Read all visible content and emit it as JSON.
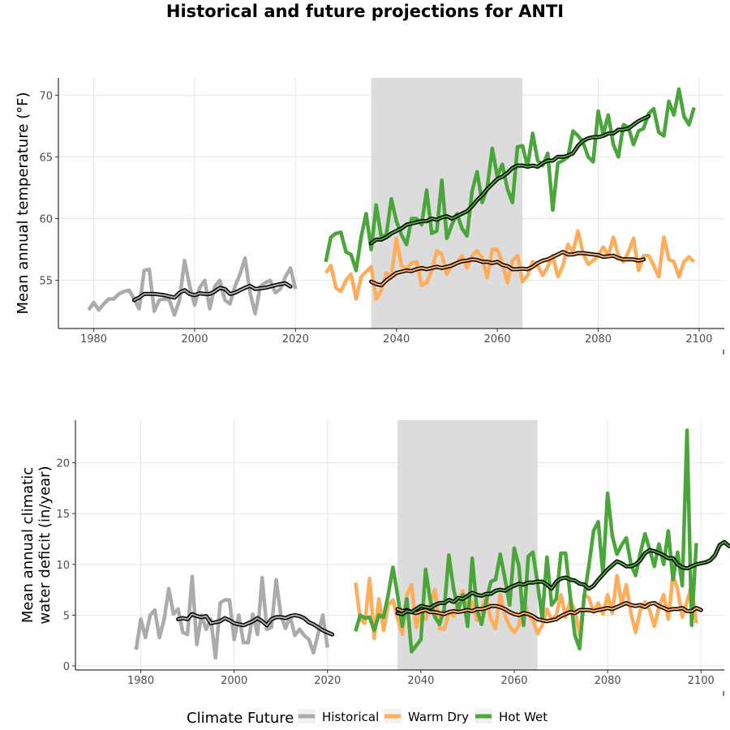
{
  "title": "Historical and future projections for ANTI",
  "colors": {
    "historical": "#ababab",
    "warm_dry": "#ffac5b",
    "hot_wet": "#4aa53b",
    "smooth": "#000000",
    "shade": "#dcdcdc",
    "grid": "#e5e5e5"
  },
  "legend": {
    "title": "Climate Future",
    "items": [
      {
        "label": "Historical",
        "color": "#ababab"
      },
      {
        "label": "Warm Dry",
        "color": "#ffac5b"
      },
      {
        "label": "Hot Wet",
        "color": "#4aa53b"
      }
    ]
  },
  "chart_data": [
    {
      "type": "line",
      "ylabel": "Mean annual temperature (°F)",
      "xlim": [
        1973,
        2105
      ],
      "ylim": [
        51.1,
        71.4
      ],
      "xticks": [
        1980,
        2000,
        2020,
        2040,
        2060,
        2080,
        2100
      ],
      "yticks": [
        55,
        60,
        65,
        70
      ],
      "shade": [
        2035,
        2065
      ],
      "grid": true,
      "series": [
        {
          "name": "Historical",
          "key": "historical",
          "x_start": 1979,
          "values": [
            52.6,
            53.2,
            52.6,
            53.1,
            53.5,
            53.5,
            53.9,
            54.1,
            54.2,
            53.5,
            52.7,
            55.8,
            55.9,
            52.5,
            53.4,
            53.5,
            53.4,
            52.2,
            53.4,
            56.6,
            54.6,
            53.0,
            54.4,
            55.0,
            52.7,
            54.5,
            55.0,
            53.4,
            53.1,
            54.5,
            55.5,
            56.8,
            54.0,
            52.3,
            54.5,
            54.8,
            55.0,
            54.0,
            54.3,
            55.3,
            56.0,
            54.3
          ]
        },
        {
          "name": "Historical smooth",
          "key": "smooth_hist",
          "x_start": 1988,
          "values": [
            53.4,
            53.6,
            53.9,
            53.9,
            53.9,
            53.85,
            53.8,
            53.7,
            53.6,
            54.0,
            54.2,
            53.9,
            53.8,
            53.95,
            53.9,
            53.9,
            54.1,
            54.4,
            54.3,
            53.9,
            54.0,
            54.2,
            54.4,
            54.55,
            54.3,
            54.35,
            54.4,
            54.5,
            54.6,
            54.7,
            54.75,
            54.5
          ]
        },
        {
          "name": "Warm Dry",
          "key": "warm_dry",
          "x_start": 2026,
          "values": [
            55.6,
            56.2,
            54.4,
            54.1,
            55.0,
            55.5,
            53.5,
            55.3,
            55.7,
            56.1,
            53.5,
            54.2,
            55.6,
            55.3,
            58.4,
            56.2,
            55.9,
            56.4,
            56.5,
            54.6,
            54.8,
            55.8,
            57.4,
            57.1,
            55.5,
            56.3,
            56.4,
            57.0,
            56.0,
            57.0,
            57.4,
            56.8,
            55.2,
            57.5,
            57.5,
            56.4,
            54.8,
            56.6,
            57.0,
            54.9,
            55.4,
            56.5,
            56.2,
            55.4,
            56.1,
            57.0,
            55.3,
            56.2,
            57.9,
            57.3,
            59.0,
            57.2,
            56.3,
            56.6,
            57.0,
            57.7,
            57.0,
            58.5,
            57.0,
            56.5,
            57.3,
            58.4,
            55.8,
            57.0,
            57.0,
            56.2,
            55.3,
            58.5,
            56.7,
            56.5,
            55.3,
            56.5,
            56.9,
            56.5
          ]
        },
        {
          "name": "Warm Dry smooth",
          "key": "smooth_wd",
          "x_start": 2035,
          "values": [
            54.9,
            54.7,
            54.6,
            55.0,
            55.3,
            55.6,
            55.7,
            55.8,
            55.75,
            55.9,
            56.0,
            55.9,
            56.0,
            56.1,
            56.0,
            56.1,
            56.2,
            56.4,
            56.55,
            56.6,
            56.7,
            56.65,
            56.5,
            56.5,
            56.4,
            56.5,
            56.25,
            56.15,
            55.9,
            55.9,
            55.95,
            55.9,
            56.1,
            56.4,
            56.6,
            56.7,
            56.9,
            57.1,
            57.3,
            57.1,
            57.1,
            57.2,
            57.2,
            57.15,
            57.1,
            57.05,
            56.9,
            56.95,
            57.0,
            56.8,
            56.7,
            56.7,
            56.7,
            56.6,
            56.7
          ]
        },
        {
          "name": "Hot Wet",
          "key": "hot_wet",
          "x_start": 2026,
          "values": [
            56.5,
            58.5,
            58.8,
            58.9,
            57.3,
            57.1,
            55.8,
            58.5,
            60.4,
            57.5,
            61.1,
            58.5,
            58.7,
            61.6,
            59.8,
            58.7,
            57.9,
            60.0,
            60.0,
            59.5,
            62.3,
            58.8,
            59.0,
            63.1,
            58.4,
            59.5,
            60.4,
            59.2,
            58.6,
            62.2,
            63.8,
            61.3,
            62.5,
            65.7,
            63.4,
            64.4,
            62.4,
            61.3,
            65.8,
            65.9,
            64.2,
            66.9,
            64.7,
            64.3,
            65.3,
            60.7,
            64.5,
            64.7,
            65.0,
            67.1,
            66.7,
            66.2,
            65.0,
            64.6,
            68.7,
            66.8,
            68.4,
            66.0,
            65.0,
            67.6,
            67.4,
            66.0,
            67.1,
            67.3,
            68.5,
            68.9,
            67.0,
            66.7,
            69.5,
            68.4,
            70.5,
            68.3,
            67.6,
            69.0
          ]
        },
        {
          "name": "Hot Wet smooth",
          "key": "smooth_hw",
          "x_start": 2035,
          "values": [
            58.0,
            58.3,
            58.3,
            58.5,
            58.8,
            59.0,
            59.2,
            59.5,
            59.6,
            59.7,
            59.8,
            59.8,
            60.0,
            59.9,
            60.1,
            60.2,
            60.0,
            60.2,
            60.4,
            60.6,
            61.0,
            61.5,
            61.9,
            62.4,
            62.8,
            63.2,
            63.4,
            63.7,
            64.1,
            64.3,
            64.3,
            64.2,
            64.3,
            64.2,
            64.5,
            64.7,
            64.7,
            65.0,
            65.0,
            65.1,
            65.3,
            65.9,
            66.3,
            66.5,
            66.6,
            66.6,
            66.7,
            66.9,
            66.9,
            67.2,
            67.2,
            67.3,
            67.6,
            67.9,
            68.1,
            68.3
          ]
        }
      ]
    },
    {
      "type": "line",
      "ylabel": [
        "Mean annual climatic",
        "water deficit (in/year)"
      ],
      "xlim": [
        1966,
        2105
      ],
      "ylim": [
        -0.4,
        24.2
      ],
      "xticks": [
        1980,
        2000,
        2020,
        2040,
        2060,
        2080,
        2100
      ],
      "yticks": [
        0,
        5,
        10,
        15,
        20
      ],
      "shade": [
        2035,
        2065
      ],
      "grid": true,
      "series": [
        {
          "name": "Historical",
          "key": "historical",
          "x_start": 1979,
          "values": [
            1.6,
            4.6,
            2.8,
            5.0,
            5.5,
            2.8,
            4.6,
            7.6,
            5.1,
            5.6,
            3.3,
            3.1,
            8.8,
            2.1,
            5.0,
            3.6,
            4.6,
            0.8,
            6.2,
            6.5,
            6.5,
            2.6,
            5.0,
            2.3,
            2.3,
            5.1,
            3.1,
            8.7,
            3.6,
            3.8,
            8.5,
            5.0,
            3.7,
            4.9,
            3.0,
            3.6,
            3.0,
            2.6,
            1.3,
            3.2,
            5.0,
            1.8
          ]
        },
        {
          "name": "Historical smooth",
          "key": "smooth_hist",
          "x_start": 1988,
          "values": [
            4.6,
            4.7,
            4.6,
            5.1,
            4.9,
            4.8,
            4.9,
            4.2,
            4.3,
            4.4,
            4.7,
            4.5,
            4.2,
            4.1,
            4.0,
            4.2,
            4.4,
            4.7,
            4.4,
            4.0,
            4.6,
            4.8,
            4.8,
            4.7,
            4.9,
            5.0,
            4.9,
            4.7,
            4.3,
            4.1,
            3.8,
            3.5,
            3.3,
            3.1
          ]
        },
        {
          "name": "Warm Dry",
          "key": "warm_dry",
          "x_start": 2026,
          "values": [
            8.2,
            4.6,
            4.2,
            8.6,
            2.7,
            6.6,
            3.5,
            6.0,
            6.5,
            4.7,
            3.1,
            7.0,
            8.0,
            3.8,
            5.3,
            4.6,
            6.2,
            7.5,
            3.7,
            3.6,
            5.3,
            4.9,
            6.1,
            7.4,
            5.3,
            6.3,
            4.5,
            5.6,
            6.9,
            4.6,
            3.7,
            7.0,
            5.0,
            3.9,
            3.3,
            4.0,
            6.6,
            5.0,
            4.5,
            3.2,
            4.0,
            5.6,
            4.5,
            5.0,
            7.0,
            4.8,
            6.4,
            5.5,
            3.0,
            7.0,
            6.7,
            5.3,
            6.2,
            5.1,
            7.0,
            5.2,
            8.9,
            6.0,
            8.0,
            5.2,
            3.3,
            5.5,
            6.3,
            5.5,
            3.9,
            5.8,
            7.0,
            4.6,
            9.0,
            7.5,
            4.8,
            6.3,
            8.0,
            4.2
          ]
        },
        {
          "name": "Warm Dry smooth",
          "key": "smooth_wd",
          "x_start": 2035,
          "values": [
            5.6,
            5.4,
            5.5,
            5.3,
            5.2,
            5.4,
            5.5,
            5.3,
            5.3,
            5.2,
            5.1,
            5.3,
            5.4,
            5.3,
            5.4,
            5.5,
            5.4,
            5.6,
            5.6,
            5.7,
            5.9,
            5.9,
            5.8,
            5.6,
            5.3,
            5.1,
            5.0,
            5.2,
            5.1,
            4.9,
            4.6,
            4.5,
            4.4,
            4.5,
            4.6,
            4.9,
            5.1,
            5.3,
            5.2,
            5.5,
            5.5,
            5.5,
            5.4,
            5.5,
            5.6,
            5.7,
            5.6,
            5.8,
            6.0,
            6.2,
            6.0,
            5.9,
            6.0,
            5.8,
            6.1,
            6.2,
            5.9,
            5.7,
            5.5,
            5.6,
            5.6,
            5.7,
            5.4,
            5.4,
            5.7,
            5.5
          ]
        },
        {
          "name": "Hot Wet",
          "key": "hot_wet",
          "x_start": 2026,
          "values": [
            3.4,
            5.0,
            4.7,
            4.8,
            3.5,
            5.0,
            4.8,
            7.0,
            9.7,
            7.0,
            3.9,
            6.6,
            1.4,
            2.0,
            2.6,
            9.5,
            6.5,
            4.8,
            4.1,
            5.6,
            10.9,
            7.6,
            5.5,
            7.0,
            3.9,
            10.6,
            5.5,
            4.1,
            6.4,
            8.3,
            8.5,
            11.0,
            8.6,
            6.0,
            11.6,
            9.8,
            4.0,
            10.8,
            11.2,
            8.1,
            4.7,
            10.7,
            6.0,
            6.6,
            11.1,
            11.1,
            6.8,
            3.0,
            1.7,
            6.9,
            9.9,
            13.3,
            14.2,
            9.0,
            17.0,
            12.8,
            11.0,
            11.9,
            12.6,
            10.0,
            8.9,
            11.1,
            13.0,
            11.5,
            9.8,
            12.0,
            10.0,
            13.3,
            8.5,
            11.2,
            7.9,
            23.2,
            4.0,
            12.1
          ]
        },
        {
          "name": "Hot Wet smooth",
          "key": "smooth_hw",
          "x_start": 2035,
          "values": [
            5.2,
            5.1,
            5.4,
            5.3,
            5.6,
            5.9,
            5.8,
            5.7,
            6.0,
            6.2,
            6.2,
            6.5,
            6.3,
            6.7,
            6.6,
            6.9,
            7.2,
            7.0,
            6.9,
            7.1,
            7.1,
            7.4,
            7.5,
            7.4,
            7.7,
            7.9,
            8.1,
            8.0,
            8.2,
            8.2,
            8.3,
            8.3,
            8.0,
            7.6,
            8.3,
            8.6,
            8.7,
            8.5,
            8.4,
            8.1,
            8.0,
            7.6,
            7.9,
            8.5,
            9.0,
            9.5,
            9.9,
            10.3,
            10.1,
            9.8,
            9.8,
            10.0,
            10.4,
            11.1,
            11.4,
            11.3,
            11.1,
            10.9,
            10.6,
            10.6,
            10.0,
            9.7,
            9.6,
            9.8,
            10.0,
            10.1,
            10.2,
            10.4,
            10.9,
            11.9,
            12.2,
            11.8,
            11.8,
            12.0
          ]
        }
      ]
    }
  ]
}
